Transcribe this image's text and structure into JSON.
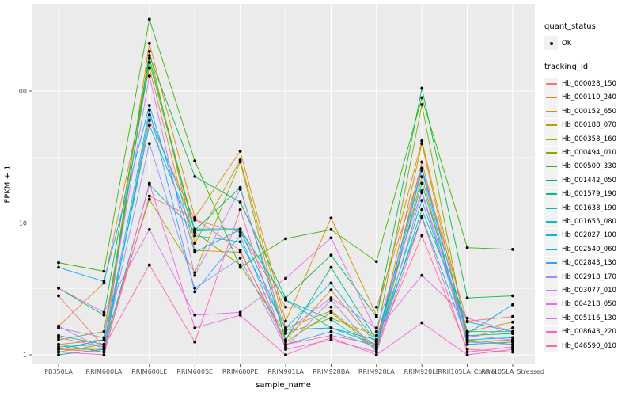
{
  "chart_data": {
    "type": "line",
    "title": "",
    "xlabel": "sample_name",
    "ylabel": "FPKM + 1",
    "y_scale": "log10",
    "ylim": [
      0.85,
      440
    ],
    "y_major_ticks": [
      1,
      10,
      100
    ],
    "y_tick_labels": [
      "1",
      "10",
      "100"
    ],
    "y_minor_ticks": [
      3.162,
      31.62,
      316.2
    ],
    "grid": "on",
    "panel_bg": "#EBEBEB",
    "grid_color": "#FFFFFF",
    "point_color": "#000000",
    "axis_text_color": "#4D4D4D",
    "legend_position": "right",
    "categories": [
      "PB350LA",
      "RRIM600LA",
      "RRIM600LE",
      "RRIM600SE",
      "RRIM600PE",
      "RRIM901LA",
      "RRIM928BA",
      "RRIM928LA",
      "RRIM928LE",
      "RRII105LA_Control",
      "RRII105LA_Stressed"
    ],
    "series": [
      {
        "name": "Hb_000028_150",
        "color": "#F8766D",
        "values": [
          2.8,
          1.15,
          60,
          10.5,
          8.5,
          2.3,
          2.3,
          2.3,
          26,
          1.8,
          1.95
        ]
      },
      {
        "name": "Hb_000110_240",
        "color": "#EA8331",
        "values": [
          1.65,
          3.5,
          150,
          6.2,
          6.0,
          1.3,
          3.1,
          1.2,
          29,
          1.35,
          1.6
        ]
      },
      {
        "name": "Hb_000152_650",
        "color": "#D89000",
        "values": [
          1.2,
          1.3,
          230,
          11,
          35,
          1.8,
          10.9,
          2.0,
          42,
          1.5,
          1.77
        ]
      },
      {
        "name": "Hb_000188_070",
        "color": "#C09B00",
        "values": [
          1.1,
          1.1,
          200,
          7.0,
          30,
          1.6,
          2.15,
          1.15,
          40,
          1.25,
          1.3
        ]
      },
      {
        "name": "Hb_000358_160",
        "color": "#A3A500",
        "values": [
          1.05,
          1.2,
          15.1,
          4.2,
          29,
          1.25,
          2.1,
          1.1,
          22.4,
          1.2,
          1.25
        ]
      },
      {
        "name": "Hb_000494_010",
        "color": "#7CAE00",
        "values": [
          1.3,
          1.5,
          165,
          8.5,
          4.8,
          1.45,
          1.9,
          1.4,
          79,
          1.3,
          1.2
        ]
      },
      {
        "name": "Hb_000500_330",
        "color": "#39B600",
        "values": [
          5.0,
          4.3,
          350,
          29.6,
          4.6,
          7.6,
          8.9,
          5.1,
          89,
          6.5,
          6.3
        ]
      },
      {
        "name": "Hb_001442_050",
        "color": "#00BB4E",
        "values": [
          3.2,
          2.0,
          186,
          22.5,
          14.4,
          2.7,
          5.7,
          1.94,
          105,
          2.7,
          2.8
        ]
      },
      {
        "name": "Hb_001579_190",
        "color": "#00BF7D",
        "values": [
          1.1,
          1.3,
          177,
          8.8,
          18.6,
          1.3,
          4.6,
          1.3,
          20,
          1.4,
          1.45
        ]
      },
      {
        "name": "Hb_001638_190",
        "color": "#00C1A3",
        "values": [
          1.0,
          1.1,
          19.5,
          8.7,
          8.9,
          2.6,
          1.6,
          1.2,
          14.8,
          1.5,
          1.5
        ]
      },
      {
        "name": "Hb_001655_080",
        "color": "#00BFC4",
        "values": [
          1.2,
          1.05,
          66,
          9.0,
          9.0,
          2.6,
          1.85,
          1.1,
          12.6,
          1.78,
          1.5
        ]
      },
      {
        "name": "Hb_002027_100",
        "color": "#00BAE0",
        "values": [
          1.4,
          1.2,
          55,
          8.0,
          7.2,
          1.6,
          3.5,
          1.25,
          11.2,
          1.3,
          1.35
        ]
      },
      {
        "name": "Hb_002540_060",
        "color": "#00B0F6",
        "values": [
          4.6,
          3.6,
          78,
          6.0,
          8.9,
          1.55,
          1.6,
          1.3,
          26,
          1.45,
          2.4
        ]
      },
      {
        "name": "Hb_002843_130",
        "color": "#35A2FF",
        "values": [
          1.15,
          1.2,
          72,
          3.0,
          8.0,
          1.2,
          1.5,
          1.15,
          25,
          1.2,
          1.25
        ]
      },
      {
        "name": "Hb_002918_170",
        "color": "#9590FF",
        "values": [
          1.65,
          1.1,
          40,
          3.2,
          5.4,
          1.15,
          2.6,
          1.05,
          17,
          1.25,
          1.2
        ]
      },
      {
        "name": "Hb_003077_010",
        "color": "#C77CFF",
        "values": [
          1.6,
          1.35,
          130,
          4.0,
          18,
          1.5,
          2.7,
          1.6,
          17.5,
          1.4,
          1.3
        ]
      },
      {
        "name": "Hb_004218_050",
        "color": "#E76BF3",
        "values": [
          3.2,
          2.1,
          8.9,
          2.0,
          2.1,
          3.8,
          7.7,
          1.5,
          4.0,
          1.9,
          1.5
        ]
      },
      {
        "name": "Hb_005116_130",
        "color": "#FA62DB",
        "values": [
          1.05,
          1.0,
          20,
          1.6,
          2.0,
          1.0,
          1.35,
          1.0,
          1.75,
          1.0,
          1.1
        ]
      },
      {
        "name": "Hb_008643_220",
        "color": "#FF62BC",
        "values": [
          1.35,
          1.15,
          4.8,
          1.25,
          12.6,
          1.1,
          1.3,
          1.05,
          11,
          1.05,
          1.15
        ]
      },
      {
        "name": "Hb_046590_010",
        "color": "#FF6A98",
        "values": [
          1.1,
          1.05,
          16,
          10.8,
          6.2,
          1.2,
          1.4,
          1.2,
          8.0,
          1.1,
          1.05
        ]
      }
    ]
  },
  "legend": {
    "quant_status": {
      "title": "quant_status",
      "ok_label": "OK",
      "marker": "black-point"
    },
    "tracking_id": {
      "title": "tracking_id"
    }
  }
}
